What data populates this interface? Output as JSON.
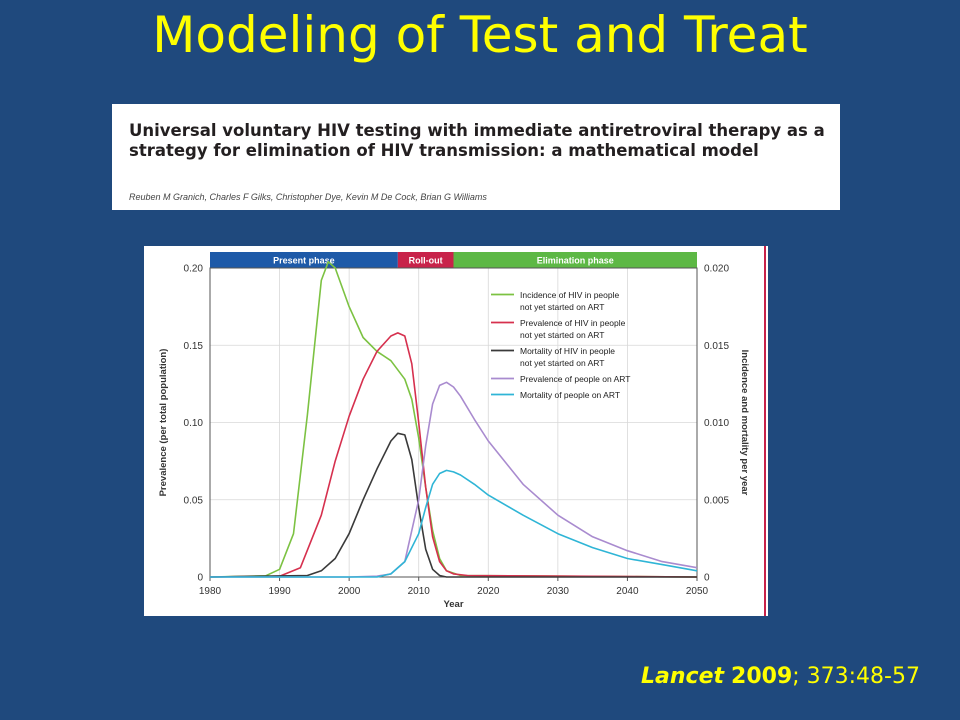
{
  "slide": {
    "title": "Modeling of Test and Treat",
    "citation": {
      "journal": "Lancet",
      "year": "2009",
      "rest": "; 373:48-57"
    }
  },
  "paper": {
    "title": "Universal voluntary HIV testing with immediate antiretroviral therapy as a strategy for elimination of HIV transmission: a mathematical model",
    "authors": "Reuben M Granich, Charles F Gilks, Christopher Dye, Kevin M De Cock, Brian G Williams"
  },
  "chart_data": {
    "type": "line",
    "phases": [
      {
        "label": "Present phase",
        "from": 1980,
        "to": 2007,
        "color": "#1E5AA8"
      },
      {
        "label": "Roll-out",
        "from": 2007,
        "to": 2015,
        "color": "#C8234A"
      },
      {
        "label": "Elimination phase",
        "from": 2015,
        "to": 2050,
        "color": "#5DB845"
      }
    ],
    "xlabel": "Year",
    "ylabel_left": "Prevalence (per total population)",
    "ylabel_right": "Incidence and mortality per year",
    "xlim": [
      1980,
      2050
    ],
    "ylim_left": [
      0,
      0.2
    ],
    "ylim_right": [
      0,
      0.02
    ],
    "x_ticks": [
      "1980",
      "1990",
      "2000",
      "2010",
      "2020",
      "2030",
      "2040",
      "2050"
    ],
    "y_ticks_left": [
      "0",
      "0.05",
      "0.10",
      "0.15",
      "0.20"
    ],
    "y_ticks_right": [
      "0",
      "0.005",
      "0.010",
      "0.015",
      "0.020"
    ],
    "series": [
      {
        "name": "Incidence of HIV in people not yet started on ART",
        "axis": "right",
        "color": "#7CC242",
        "x": [
          1980,
          1988,
          1990,
          1992,
          1994,
          1996,
          1997,
          1998,
          2000,
          2002,
          2004,
          2006,
          2008,
          2009,
          2010,
          2011,
          2012,
          2013,
          2014,
          2016,
          2050
        ],
        "y": [
          0,
          8e-05,
          0.0005,
          0.0028,
          0.0105,
          0.0192,
          0.0204,
          0.02,
          0.0175,
          0.0155,
          0.0146,
          0.014,
          0.0128,
          0.0115,
          0.009,
          0.0058,
          0.003,
          0.0012,
          0.0004,
          0.0001,
          0
        ]
      },
      {
        "name": "Prevalence of HIV in people not yet started on ART",
        "axis": "left",
        "color": "#D6304E",
        "x": [
          1980,
          1990,
          1993,
          1996,
          1998,
          2000,
          2002,
          2004,
          2006,
          2007,
          2008,
          2009,
          2010,
          2011,
          2012,
          2013,
          2014,
          2015,
          2017,
          2050
        ],
        "y": [
          0,
          0.0005,
          0.006,
          0.04,
          0.075,
          0.104,
          0.128,
          0.146,
          0.156,
          0.158,
          0.156,
          0.138,
          0.1,
          0.058,
          0.026,
          0.01,
          0.004,
          0.002,
          0.001,
          0
        ]
      },
      {
        "name": "Mortality of HIV in people not yet started on ART",
        "axis": "right",
        "color": "#3A3A3A",
        "x": [
          1980,
          1994,
          1996,
          1998,
          2000,
          2002,
          2004,
          2006,
          2007,
          2008,
          2009,
          2010,
          2011,
          2012,
          2013,
          2014,
          2050
        ],
        "y": [
          0,
          0.0001,
          0.0004,
          0.0012,
          0.0028,
          0.005,
          0.007,
          0.0088,
          0.0093,
          0.0092,
          0.0076,
          0.0045,
          0.0018,
          0.0005,
          0.0001,
          0,
          0
        ]
      },
      {
        "name": "Prevalence of people on ART",
        "axis": "left",
        "color": "#A98BCF",
        "x": [
          1980,
          2000,
          2004,
          2006,
          2008,
          2010,
          2011,
          2012,
          2013,
          2014,
          2015,
          2016,
          2018,
          2020,
          2025,
          2030,
          2035,
          2040,
          2045,
          2050
        ],
        "y": [
          0,
          0,
          0.0005,
          0.002,
          0.01,
          0.05,
          0.085,
          0.112,
          0.124,
          0.126,
          0.123,
          0.117,
          0.102,
          0.088,
          0.06,
          0.04,
          0.026,
          0.017,
          0.01,
          0.006
        ]
      },
      {
        "name": "Mortality of people on ART",
        "axis": "right",
        "color": "#2FB5D6",
        "x": [
          1980,
          2004,
          2006,
          2008,
          2010,
          2011,
          2012,
          2013,
          2014,
          2015,
          2016,
          2018,
          2020,
          2025,
          2030,
          2035,
          2040,
          2045,
          2050
        ],
        "y": [
          0,
          0,
          0.0002,
          0.001,
          0.0028,
          0.0045,
          0.006,
          0.0067,
          0.0069,
          0.0068,
          0.0066,
          0.006,
          0.0053,
          0.004,
          0.0028,
          0.0019,
          0.0012,
          0.0008,
          0.0004
        ]
      }
    ]
  }
}
